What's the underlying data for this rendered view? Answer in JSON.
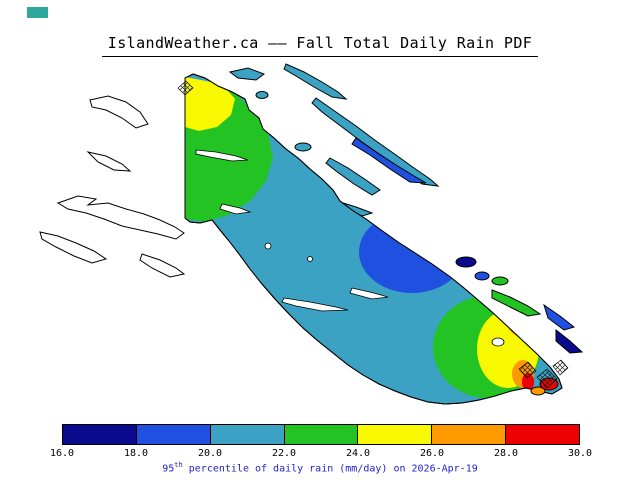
{
  "header": {
    "title": "IslandWeather.ca —— Fall Total Daily Rain PDF"
  },
  "palette": {
    "navy": "#0A0A8C",
    "blue": "#2050E0",
    "teal": "#3BA2C4",
    "green": "#22C322",
    "yellow": "#F8F800",
    "orange": "#FF9900",
    "red": "#EE0000",
    "land_outline": "#000000",
    "unfilled_land": "#FFFFFF",
    "corner_swatch": "#2FA79A",
    "caption_text": "#2222CC"
  },
  "chart_data": {
    "type": "heatmap",
    "title": "IslandWeather.ca —— Fall Total Daily Rain PDF",
    "variable": "95th percentile of daily rain",
    "units": "mm/day",
    "date": "2026-Apr-19",
    "caption": {
      "base": "95",
      "sup": "th",
      "rest": " percentile of daily rain (mm/day) on 2026-Apr-19"
    },
    "colorbar": {
      "orientation": "horizontal",
      "min": 16.0,
      "max": 30.0,
      "step": 2.0,
      "ticks": [
        "16.0",
        "18.0",
        "20.0",
        "22.0",
        "24.0",
        "26.0",
        "28.0",
        "30.0"
      ],
      "colors": [
        "#0A0A8C",
        "#2050E0",
        "#3BA2C4",
        "#22C322",
        "#F8F800",
        "#FF9900",
        "#EE0000"
      ]
    },
    "regions": [
      {
        "area": "island interior (base fill)",
        "band": "20.0-22.0 mm/day",
        "color": "#3BA2C4"
      },
      {
        "area": "north island cell - outer",
        "band": "22.0-24.0 mm/day",
        "color": "#22C322"
      },
      {
        "area": "north island cell - core",
        "band": "24.0-26.0 mm/day",
        "color": "#F8F800"
      },
      {
        "area": "east coast dry cell - outer",
        "band": "18.0-20.0 mm/day",
        "color": "#2050E0"
      },
      {
        "area": "east coast dry cell - core",
        "band": "16.0-18.0 mm/day",
        "color": "#0A0A8C"
      },
      {
        "area": "south island wet cell - outer",
        "band": "22.0-24.0 mm/day",
        "color": "#22C322"
      },
      {
        "area": "south island wet cell - mid",
        "band": "24.0-26.0 mm/day",
        "color": "#F8F800"
      },
      {
        "area": "south island wet cell - inner",
        "band": "26.0-28.0 mm/day",
        "color": "#FF9900"
      },
      {
        "area": "south island wet cell - core",
        "band": "28.0-30.0 mm/day",
        "color": "#EE0000"
      }
    ]
  }
}
